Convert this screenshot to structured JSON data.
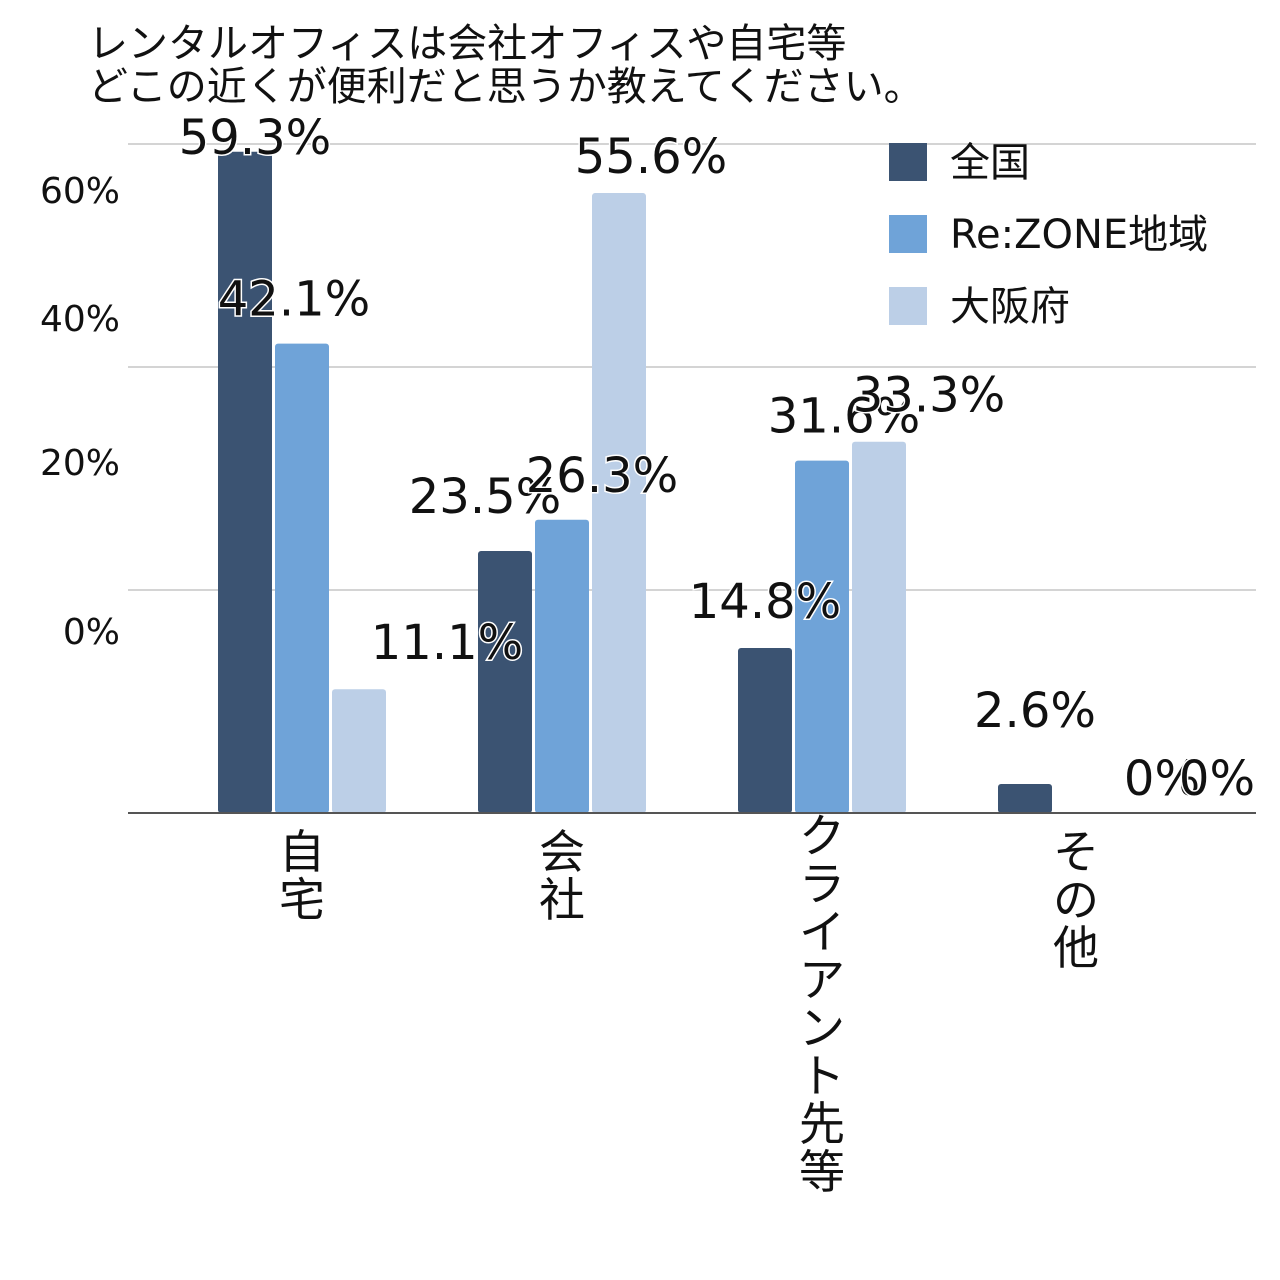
{
  "chart_data": {
    "type": "bar",
    "title": [
      "レンタルオフィスは会社オフィスや自宅等",
      "どこの近くが便利だと思うか教えてください。"
    ],
    "categories": [
      "自宅",
      "会社",
      "クライアント先等",
      "その他"
    ],
    "series": [
      {
        "name": "全国",
        "values": [
          59.3,
          23.5,
          14.8,
          2.6
        ],
        "labels": [
          "59.3%",
          "23.5%",
          "14.8%",
          "2.6%"
        ]
      },
      {
        "name": "Re:ZONE地域",
        "values": [
          42.1,
          26.3,
          31.6,
          0
        ],
        "labels": [
          "42.1%",
          "26.3%",
          "31.6%",
          "0%"
        ]
      },
      {
        "name": "大阪府",
        "values": [
          11.1,
          55.6,
          33.3,
          0
        ],
        "labels": [
          "11.1%",
          "55.6%",
          "33.3%",
          "0%"
        ]
      }
    ],
    "y_tick_labels": [
      "0%",
      "20%",
      "40%",
      "60%"
    ],
    "ylim": [
      0,
      60
    ],
    "grid": true,
    "legend_position": "top-right"
  },
  "colors": {
    "series": [
      "#3b5372",
      "#6fa3d8",
      "#bccfe7"
    ],
    "grid": "#d4d4d4",
    "axis": "#555555"
  }
}
